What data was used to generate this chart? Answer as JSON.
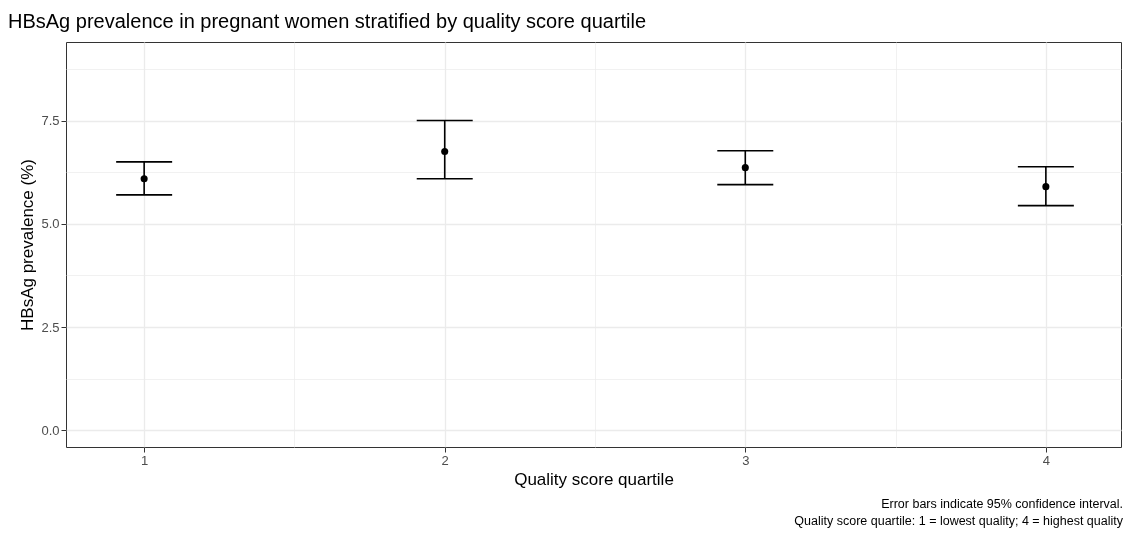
{
  "chart_data": {
    "type": "scatter",
    "title": "HBsAg prevalence in pregnant women stratified by quality score quartile",
    "xlabel": "Quality score quartile",
    "ylabel": "HBsAg prevalence (%)",
    "x": [
      1,
      2,
      3,
      4
    ],
    "values": [
      6.09,
      6.75,
      6.36,
      5.9
    ],
    "errors": [
      [
        5.7,
        6.5
      ],
      [
        6.09,
        7.5
      ],
      [
        5.95,
        6.77
      ],
      [
        5.44,
        6.38
      ]
    ],
    "color": "#000000",
    "marker": "circle",
    "xlim": [
      0.74,
      4.25
    ],
    "xticks": [
      1,
      {
        "value": 1.5,
        "label": null
      },
      2,
      {
        "value": 2.5,
        "label": null
      },
      3,
      {
        "value": 3.5,
        "label": null
      },
      4
    ],
    "ylim": [
      -0.4,
      9.4
    ],
    "yticks": [
      {
        "value": 0,
        "label": "0.0"
      },
      {
        "value": 1.25,
        "label": null
      },
      {
        "value": 2.5,
        "label": "2.5"
      },
      {
        "value": 3.75,
        "label": null
      },
      {
        "value": 5,
        "label": "5.0"
      },
      {
        "value": 6.25,
        "label": null
      },
      {
        "value": 7.5,
        "label": "7.5"
      },
      {
        "value": 8.75,
        "label": null
      }
    ],
    "grid": true,
    "annotations": [
      "Error bars indicate 95% confidence interval.",
      "Quality score quartile: 1 = lowest quality; 4 = highest quality"
    ]
  }
}
